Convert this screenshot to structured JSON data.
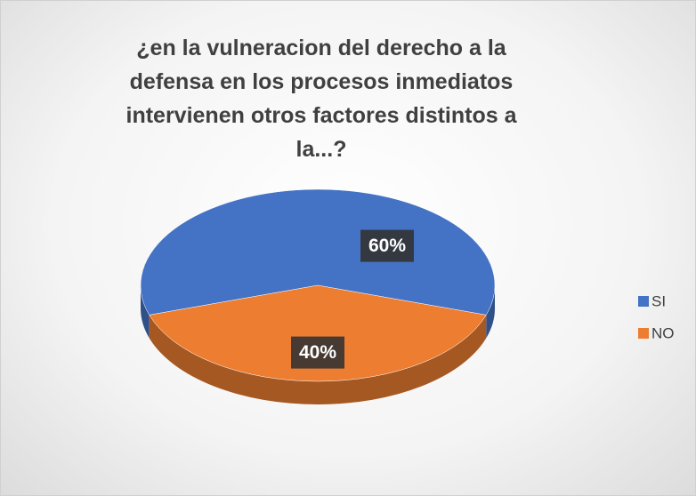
{
  "chart_data": {
    "type": "pie",
    "title": "¿en la vulneracion del derecho a la defensa en los procesos inmediatos intervienen otros factores distintos a la...?",
    "categories": [
      "SI",
      "NO"
    ],
    "values": [
      60,
      40
    ],
    "value_labels": [
      "60%",
      "40%"
    ],
    "colors": [
      "#4472c4",
      "#ed7d31"
    ],
    "legend": "right"
  }
}
